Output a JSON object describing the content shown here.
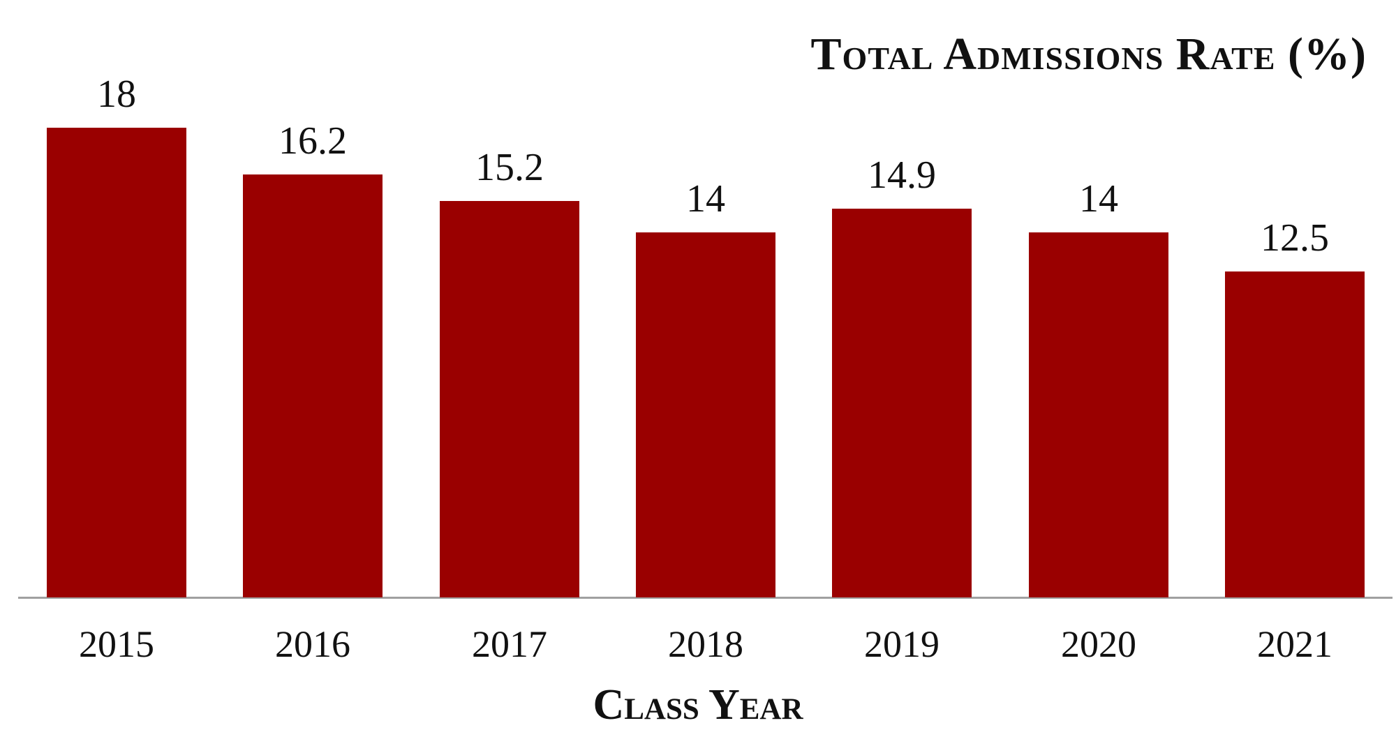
{
  "chart_data": {
    "type": "bar",
    "title": "Total Admissions Rate (%)",
    "xlabel": "Class Year",
    "ylabel": "",
    "categories": [
      "2015",
      "2016",
      "2017",
      "2018",
      "2019",
      "2020",
      "2021"
    ],
    "values": [
      18,
      16.2,
      15.2,
      14,
      14.9,
      14,
      12.5
    ],
    "value_labels": [
      "18",
      "16.2",
      "15.2",
      "14",
      "14.9",
      "14",
      "12.5"
    ],
    "ylim": [
      0,
      18
    ],
    "grid": false,
    "legend": null,
    "bar_color": "#9a0000",
    "axis_color": "#a0a0a0"
  }
}
